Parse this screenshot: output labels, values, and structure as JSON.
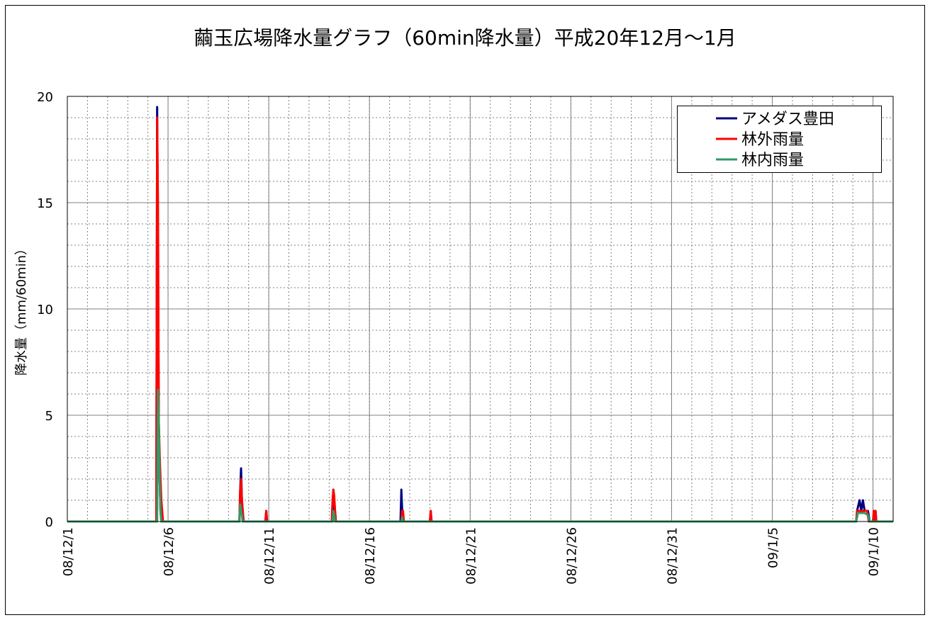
{
  "chart_data": {
    "type": "line",
    "title": "繭玉広場降水量グラフ（60min降水量）平成20年12月～1月",
    "ylabel": "降水量（mm/60min）",
    "xlabel": "",
    "ylim": [
      0,
      20
    ],
    "yticks": [
      "0",
      "5",
      "10",
      "15",
      "20"
    ],
    "xlim": [
      "2008-12-01",
      "2009-01-11"
    ],
    "xticks": [
      {
        "date": "2008-12-01",
        "label": "08/12/1"
      },
      {
        "date": "2008-12-06",
        "label": "08/12/6"
      },
      {
        "date": "2008-12-11",
        "label": "08/12/11"
      },
      {
        "date": "2008-12-16",
        "label": "08/12/16"
      },
      {
        "date": "2008-12-21",
        "label": "08/12/21"
      },
      {
        "date": "2008-12-26",
        "label": "08/12/26"
      },
      {
        "date": "2008-12-31",
        "label": "08/12/31"
      },
      {
        "date": "2009-01-05",
        "label": "09/1/5"
      },
      {
        "date": "2009-01-10",
        "label": "09/1/10"
      }
    ],
    "grid": true,
    "legend_position": "top-right",
    "series": [
      {
        "name": "アメダス豊田",
        "color": "#000080",
        "points": [
          [
            "2008-12-01 00:00",
            0
          ],
          [
            "2008-12-05 10:00",
            0
          ],
          [
            "2008-12-05 11:00",
            19.5
          ],
          [
            "2008-12-05 12:00",
            12
          ],
          [
            "2008-12-05 13:00",
            4.5
          ],
          [
            "2008-12-05 14:00",
            2
          ],
          [
            "2008-12-05 15:00",
            0.5
          ],
          [
            "2008-12-05 16:00",
            0
          ],
          [
            "2008-12-09 13:00",
            0
          ],
          [
            "2008-12-09 14:00",
            1.5
          ],
          [
            "2008-12-09 15:00",
            2.5
          ],
          [
            "2008-12-09 16:00",
            1
          ],
          [
            "2008-12-09 17:00",
            0.5
          ],
          [
            "2008-12-09 18:00",
            0
          ],
          [
            "2008-12-10 20:00",
            0
          ],
          [
            "2008-12-10 21:00",
            0.5
          ],
          [
            "2008-12-10 22:00",
            0
          ],
          [
            "2008-12-14 04:00",
            0
          ],
          [
            "2008-12-14 05:00",
            1.5
          ],
          [
            "2008-12-14 06:00",
            1
          ],
          [
            "2008-12-14 07:00",
            0.5
          ],
          [
            "2008-12-14 08:00",
            0
          ],
          [
            "2008-12-17 13:00",
            0
          ],
          [
            "2008-12-17 14:00",
            1.5
          ],
          [
            "2008-12-17 15:00",
            0.5
          ],
          [
            "2008-12-17 16:00",
            0
          ],
          [
            "2008-12-19 00:00",
            0
          ],
          [
            "2008-12-19 01:00",
            0.5
          ],
          [
            "2008-12-19 02:00",
            0
          ],
          [
            "2009-01-09 04:00",
            0
          ],
          [
            "2009-01-09 05:00",
            0.5
          ],
          [
            "2009-01-09 08:00",
            1
          ],
          [
            "2009-01-09 10:00",
            0.5
          ],
          [
            "2009-01-09 12:00",
            1
          ],
          [
            "2009-01-09 14:00",
            0.5
          ],
          [
            "2009-01-09 18:00",
            0.5
          ],
          [
            "2009-01-09 20:00",
            0
          ],
          [
            "2009-01-10 00:00",
            0
          ],
          [
            "2009-01-10 01:00",
            0.5
          ],
          [
            "2009-01-10 02:00",
            0
          ],
          [
            "2009-01-10 03:00",
            0.5
          ],
          [
            "2009-01-10 04:00",
            0
          ],
          [
            "2009-01-11 00:00",
            0
          ]
        ]
      },
      {
        "name": "林外雨量",
        "color": "#ff0000",
        "points": [
          [
            "2008-12-01 00:00",
            0
          ],
          [
            "2008-12-05 10:00",
            0
          ],
          [
            "2008-12-05 11:00",
            19
          ],
          [
            "2008-12-05 12:00",
            15
          ],
          [
            "2008-12-05 13:00",
            4.7
          ],
          [
            "2008-12-05 14:00",
            3.2
          ],
          [
            "2008-12-05 15:00",
            2
          ],
          [
            "2008-12-05 16:00",
            1
          ],
          [
            "2008-12-05 17:00",
            0.5
          ],
          [
            "2008-12-05 18:00",
            0
          ],
          [
            "2008-12-09 13:00",
            0
          ],
          [
            "2008-12-09 14:00",
            1.5
          ],
          [
            "2008-12-09 15:00",
            2
          ],
          [
            "2008-12-09 16:00",
            1
          ],
          [
            "2008-12-09 17:00",
            0.5
          ],
          [
            "2008-12-09 18:00",
            0
          ],
          [
            "2008-12-10 20:00",
            0
          ],
          [
            "2008-12-10 21:00",
            0.5
          ],
          [
            "2008-12-10 22:00",
            0
          ],
          [
            "2008-12-14 03:00",
            0
          ],
          [
            "2008-12-14 04:00",
            1
          ],
          [
            "2008-12-14 05:00",
            1.5
          ],
          [
            "2008-12-14 06:00",
            1.2
          ],
          [
            "2008-12-14 07:00",
            0.5
          ],
          [
            "2008-12-14 08:00",
            0
          ],
          [
            "2008-12-17 14:00",
            0
          ],
          [
            "2008-12-17 15:00",
            0.5
          ],
          [
            "2008-12-17 16:00",
            0.5
          ],
          [
            "2008-12-17 17:00",
            0
          ],
          [
            "2008-12-19 00:00",
            0
          ],
          [
            "2008-12-19 01:00",
            0.5
          ],
          [
            "2008-12-19 02:00",
            0
          ],
          [
            "2009-01-09 04:00",
            0
          ],
          [
            "2009-01-09 05:00",
            0.5
          ],
          [
            "2009-01-09 07:00",
            0.5
          ],
          [
            "2009-01-09 09:00",
            0.5
          ],
          [
            "2009-01-09 11:00",
            0.5
          ],
          [
            "2009-01-09 14:00",
            0.5
          ],
          [
            "2009-01-09 17:00",
            0.5
          ],
          [
            "2009-01-09 19:00",
            0
          ],
          [
            "2009-01-10 00:00",
            0
          ],
          [
            "2009-01-10 01:00",
            0.5
          ],
          [
            "2009-01-10 02:00",
            0
          ],
          [
            "2009-01-10 03:00",
            0.5
          ],
          [
            "2009-01-10 04:00",
            0
          ],
          [
            "2009-01-11 00:00",
            0
          ]
        ]
      },
      {
        "name": "林内雨量",
        "color": "#339966",
        "points": [
          [
            "2008-12-01 00:00",
            0
          ],
          [
            "2008-12-05 11:00",
            0
          ],
          [
            "2008-12-05 12:00",
            6.2
          ],
          [
            "2008-12-05 13:00",
            4.5
          ],
          [
            "2008-12-05 14:00",
            2
          ],
          [
            "2008-12-05 15:00",
            0.5
          ],
          [
            "2008-12-05 16:00",
            0
          ],
          [
            "2008-12-09 13:00",
            0
          ],
          [
            "2008-12-09 14:00",
            0.8
          ],
          [
            "2008-12-09 15:00",
            0.5
          ],
          [
            "2008-12-09 16:00",
            0.3
          ],
          [
            "2008-12-09 17:00",
            0
          ],
          [
            "2008-12-14 04:00",
            0
          ],
          [
            "2008-12-14 05:00",
            0.5
          ],
          [
            "2008-12-14 06:00",
            0.3
          ],
          [
            "2008-12-14 07:00",
            0
          ],
          [
            "2008-12-17 14:00",
            0
          ],
          [
            "2008-12-17 15:00",
            0.2
          ],
          [
            "2008-12-17 16:00",
            0
          ],
          [
            "2009-01-09 04:00",
            0
          ],
          [
            "2009-01-09 06:00",
            0.4
          ],
          [
            "2009-01-09 10:00",
            0.4
          ],
          [
            "2009-01-09 14:00",
            0.4
          ],
          [
            "2009-01-09 18:00",
            0.3
          ],
          [
            "2009-01-09 20:00",
            0
          ],
          [
            "2009-01-11 00:00",
            0
          ]
        ]
      }
    ]
  }
}
